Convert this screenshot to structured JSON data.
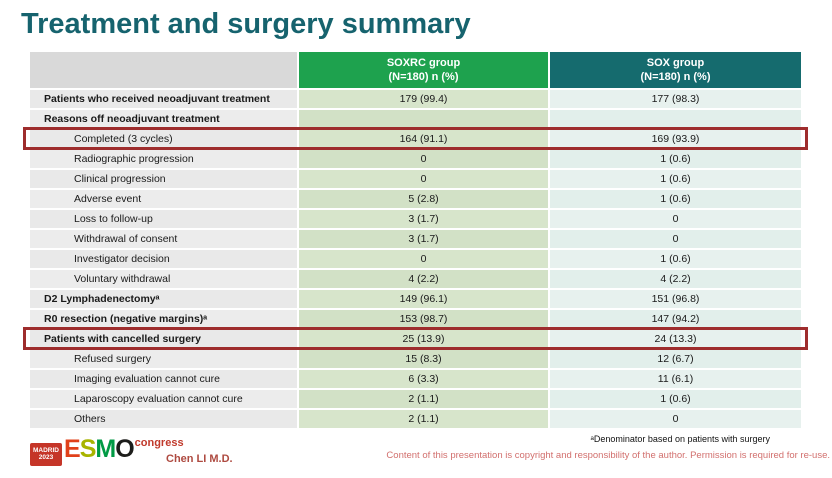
{
  "title": "Treatment and surgery summary",
  "table": {
    "columns": [
      {
        "line1": "SOXRC group",
        "line2": "(N=180) n (%)"
      },
      {
        "line1": "SOX group",
        "line2": "(N=180) n (%)"
      }
    ],
    "rows": [
      {
        "label": "Patients who received neoadjuvant treatment",
        "soxrc": "179 (99.4)",
        "sox": "177 (98.3)",
        "style": "bold",
        "highlight": false
      },
      {
        "label": "Reasons off neoadjuvant treatment",
        "soxrc": "",
        "sox": "",
        "style": "bold",
        "highlight": false
      },
      {
        "label": "Completed (3 cycles)",
        "soxrc": "164 (91.1)",
        "sox": "169 (93.9)",
        "style": "indent",
        "highlight": true
      },
      {
        "label": "Radiographic progression",
        "soxrc": "0",
        "sox": "1 (0.6)",
        "style": "indent",
        "highlight": false
      },
      {
        "label": "Clinical progression",
        "soxrc": "0",
        "sox": "1 (0.6)",
        "style": "indent",
        "highlight": false
      },
      {
        "label": "Adverse event",
        "soxrc": "5 (2.8)",
        "sox": "1 (0.6)",
        "style": "indent",
        "highlight": false
      },
      {
        "label": "Loss to follow-up",
        "soxrc": "3 (1.7)",
        "sox": "0",
        "style": "indent",
        "highlight": false
      },
      {
        "label": "Withdrawal of consent",
        "soxrc": "3 (1.7)",
        "sox": "0",
        "style": "indent",
        "highlight": false
      },
      {
        "label": "Investigator decision",
        "soxrc": "0",
        "sox": "1 (0.6)",
        "style": "indent",
        "highlight": false
      },
      {
        "label": "Voluntary withdrawal",
        "soxrc": "4 (2.2)",
        "sox": "4 (2.2)",
        "style": "indent",
        "highlight": false
      },
      {
        "label": "D2 Lymphadenectomyᵃ",
        "soxrc": "149 (96.1)",
        "sox": "151 (96.8)",
        "style": "bold",
        "highlight": false
      },
      {
        "label": "R0 resection (negative margins)ᵃ",
        "soxrc": "153 (98.7)",
        "sox": "147 (94.2)",
        "style": "bold",
        "highlight": false
      },
      {
        "label": "Patients with cancelled surgery",
        "soxrc": "25 (13.9)",
        "sox": "24 (13.3)",
        "style": "bold",
        "highlight": true
      },
      {
        "label": "Refused surgery",
        "soxrc": "15 (8.3)",
        "sox": "12 (6.7)",
        "style": "indent",
        "highlight": false
      },
      {
        "label": "Imaging evaluation cannot cure",
        "soxrc": "6 (3.3)",
        "sox": "11 (6.1)",
        "style": "indent",
        "highlight": false
      },
      {
        "label": "Laparoscopy evaluation cannot cure",
        "soxrc": "2 (1.1)",
        "sox": "1 (0.6)",
        "style": "indent",
        "highlight": false
      },
      {
        "label": "Others",
        "soxrc": "2 (1.1)",
        "sox": "0",
        "style": "indent",
        "highlight": false
      }
    ]
  },
  "footer": {
    "logo": {
      "badge_line1": "MADRID",
      "badge_line2": "2023",
      "letters": {
        "e": "E",
        "s": "S",
        "m": "M",
        "o": "O"
      },
      "congress": "congress"
    },
    "author": "Chen LI M.D.",
    "footnote": "ᵃDenominator based on patients with surgery",
    "copyright": "Content of this presentation is copyright and responsibility of the author. Permission is required for re-use."
  },
  "colors": {
    "title": "#16636e",
    "header_soxrc": "#1ea24e",
    "header_sox": "#156b6e",
    "cell_label": "#e9e9e9",
    "cell_soxrc": "#d7e5cb",
    "cell_sox": "#e7f1ee",
    "highlight_border": "#9e2d2d",
    "author_text": "#ae4a40",
    "copyright_text": "#d2706e",
    "logo_red": "#c53528"
  }
}
